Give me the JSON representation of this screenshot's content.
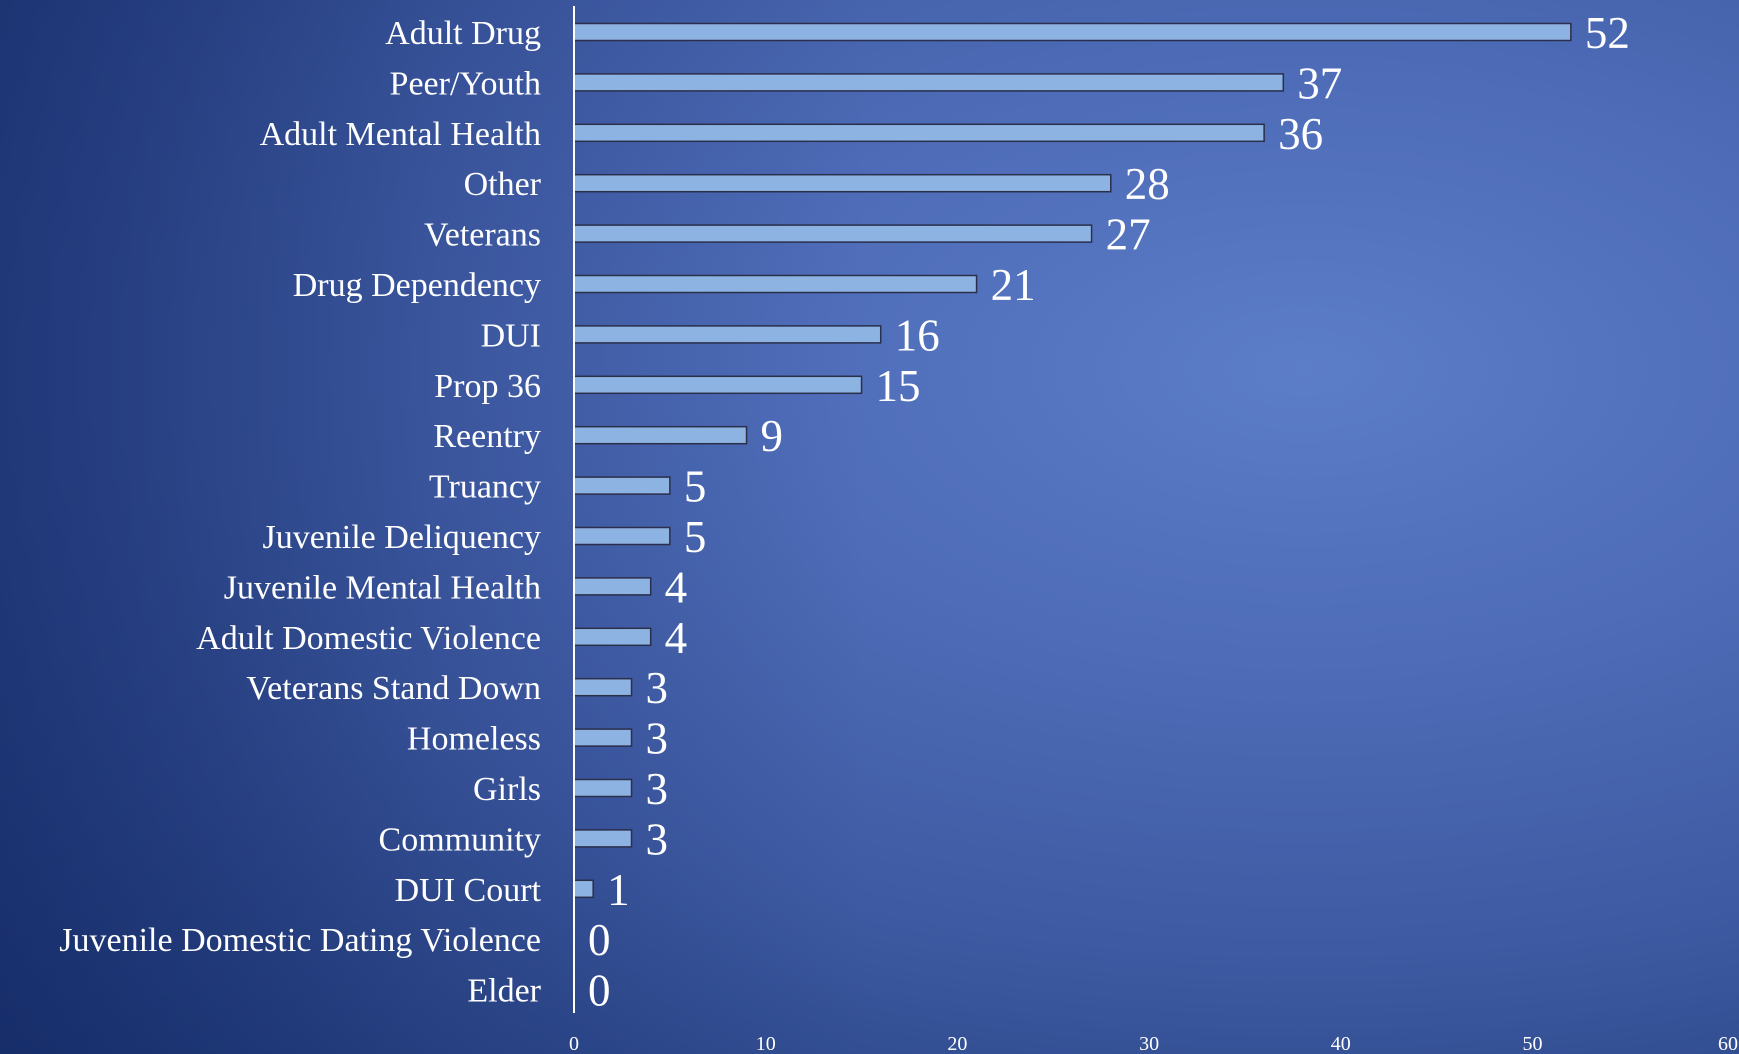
{
  "chart_data": {
    "type": "bar",
    "orientation": "horizontal",
    "categories": [
      "Adult Drug",
      "Peer/Youth",
      "Adult Mental Health",
      "Other",
      "Veterans",
      "Drug Dependency",
      "DUI",
      "Prop 36",
      "Reentry",
      "Truancy",
      "Juvenile Deliquency",
      "Juvenile Mental Health",
      "Adult Domestic Violence",
      "Veterans Stand Down",
      "Homeless",
      "Girls",
      "Community",
      "DUI Court",
      "Juvenile Domestic Dating Violence",
      "Elder"
    ],
    "values": [
      52,
      37,
      36,
      28,
      27,
      21,
      16,
      15,
      9,
      5,
      5,
      4,
      4,
      3,
      3,
      3,
      3,
      1,
      0,
      0
    ],
    "xlim": [
      0,
      60
    ],
    "xticks": [
      0,
      10,
      20,
      30,
      40,
      50,
      60
    ],
    "title": "",
    "xlabel": "",
    "ylabel": "",
    "grid": false,
    "data_labels": true,
    "colors": {
      "bar_fill": "#8db3e2",
      "bar_stroke": "#2a2f4a",
      "text": "#ffffff",
      "axis": "#ffffff"
    }
  }
}
